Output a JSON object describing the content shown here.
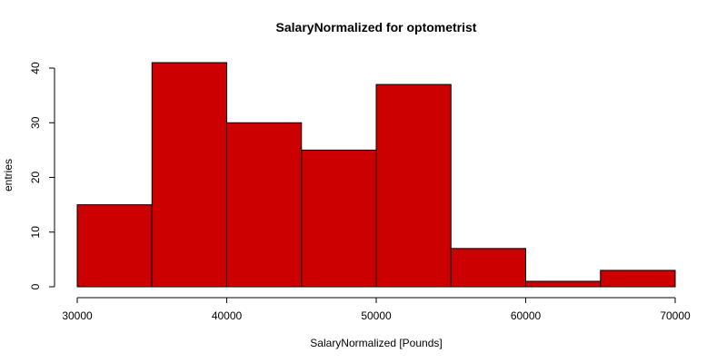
{
  "chart_data": {
    "type": "bar",
    "title": "SalaryNormalized for optometrist",
    "xlabel": "SalaryNormalized [Pounds]",
    "ylabel": "entries",
    "bar_color": "#cc0000",
    "bin_edges": [
      30000,
      35000,
      40000,
      45000,
      50000,
      55000,
      60000,
      65000,
      70000
    ],
    "values": [
      15,
      41,
      30,
      25,
      37,
      7,
      1,
      3
    ],
    "xlim": [
      30000,
      70000
    ],
    "ylim": [
      0,
      41
    ],
    "x_ticks": [
      30000,
      40000,
      50000,
      60000,
      70000
    ],
    "x_tick_labels": [
      "30000",
      "40000",
      "50000",
      "60000",
      "70000"
    ],
    "y_ticks": [
      0,
      10,
      20,
      30,
      40
    ],
    "y_tick_labels": [
      "0",
      "10",
      "20",
      "30",
      "40"
    ],
    "grid": false,
    "legend": "none"
  }
}
